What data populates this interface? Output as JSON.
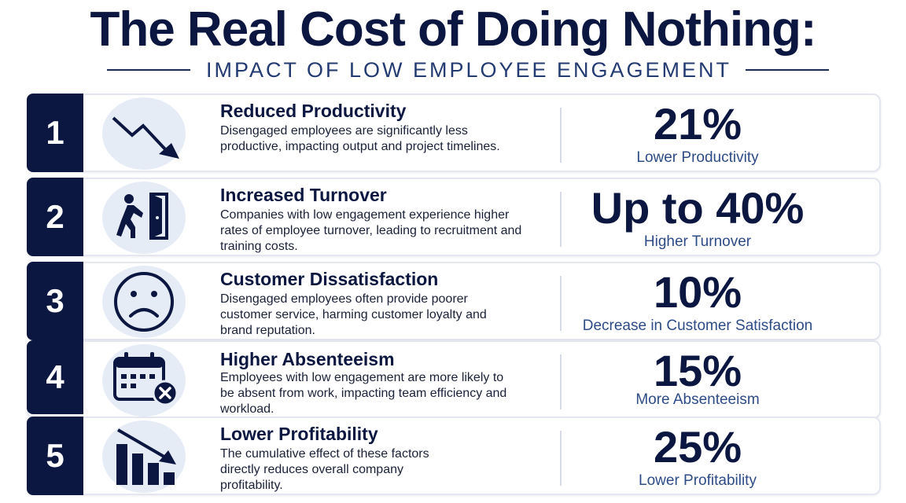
{
  "header": {
    "title": "The Real Cost of Doing Nothing:",
    "subtitle": "IMPACT OF LOW EMPLOYEE ENGAGEMENT"
  },
  "colors": {
    "navy": "#0b1740",
    "accent_blue": "#2e4b86",
    "icon_bg": "#e5ecf6"
  },
  "items": [
    {
      "number": "1",
      "icon": "trend-down-arrow-icon",
      "title": "Reduced Productivity",
      "description": "Disengaged employees are significantly less productive, impacting output and project timelines.",
      "stat": "21%",
      "stat_label": "Lower Productivity"
    },
    {
      "number": "2",
      "icon": "person-exiting-door-icon",
      "title": "Increased Turnover",
      "description": "Companies with low engagement experience higher rates of employee turnover, leading to recruitment and training costs.",
      "stat": "Up to 40%",
      "stat_label": "Higher Turnover"
    },
    {
      "number": "3",
      "icon": "sad-face-icon",
      "title": "Customer Dissatisfaction",
      "description": "Disengaged employees often provide poorer customer service, harming customer loyalty and brand reputation.",
      "stat": "10%",
      "stat_label": "Decrease in Customer Satisfaction"
    },
    {
      "number": "4",
      "icon": "calendar-cancel-icon",
      "title": "Higher Absenteeism",
      "description": "Employees with low engagement are more likely to be absent from work, impacting team efficiency and workload.",
      "stat": "15%",
      "stat_label": "More Absenteeism"
    },
    {
      "number": "5",
      "icon": "declining-bar-chart-icon",
      "title": "Lower Profitability",
      "description": "The cumulative effect of these factors directly reduces overall company profitability.",
      "stat": "25%",
      "stat_label": "Lower Profitability"
    }
  ]
}
